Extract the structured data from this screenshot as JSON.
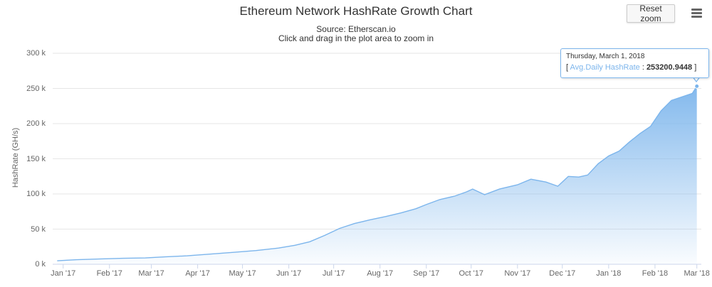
{
  "chart_data": {
    "type": "area",
    "title": "Ethereum Network HashRate Growth Chart",
    "subtitle_source": "Source: Etherscan.io",
    "subtitle_hint": "Click and drag in the plot area to zoom in",
    "ylabel": "HashRate (GH/s)",
    "xlabel": "",
    "ylim": [
      0,
      300000
    ],
    "y_ticks": [
      {
        "value": 0,
        "label": "0 k"
      },
      {
        "value": 50000,
        "label": "50 k"
      },
      {
        "value": 100000,
        "label": "100 k"
      },
      {
        "value": 150000,
        "label": "150 k"
      },
      {
        "value": 200000,
        "label": "200 k"
      },
      {
        "value": 250000,
        "label": "250 k"
      },
      {
        "value": 300000,
        "label": "300 k"
      }
    ],
    "x_ticks": [
      {
        "date": "2017-01-01",
        "label": "Jan '17"
      },
      {
        "date": "2017-02-01",
        "label": "Feb '17"
      },
      {
        "date": "2017-03-01",
        "label": "Mar '17"
      },
      {
        "date": "2017-04-01",
        "label": "Apr '17"
      },
      {
        "date": "2017-05-01",
        "label": "May '17"
      },
      {
        "date": "2017-06-01",
        "label": "Jun '17"
      },
      {
        "date": "2017-07-01",
        "label": "Jul '17"
      },
      {
        "date": "2017-08-01",
        "label": "Aug '17"
      },
      {
        "date": "2017-09-01",
        "label": "Sep '17"
      },
      {
        "date": "2017-10-01",
        "label": "Oct '17"
      },
      {
        "date": "2017-11-01",
        "label": "Nov '17"
      },
      {
        "date": "2017-12-01",
        "label": "Dec '17"
      },
      {
        "date": "2018-01-01",
        "label": "Jan '18"
      },
      {
        "date": "2018-02-01",
        "label": "Feb '18"
      },
      {
        "date": "2018-03-01",
        "label": "Mar '18"
      }
    ],
    "series": [
      {
        "x": [
          "2016-12-28",
          "2017-01-10",
          "2017-01-25",
          "2017-02-10",
          "2017-02-25",
          "2017-03-10",
          "2017-03-25",
          "2017-04-10",
          "2017-04-25",
          "2017-05-10",
          "2017-05-25",
          "2017-06-05",
          "2017-06-15",
          "2017-06-25",
          "2017-07-05",
          "2017-07-15",
          "2017-07-25",
          "2017-08-05",
          "2017-08-15",
          "2017-08-25",
          "2017-09-01",
          "2017-09-10",
          "2017-09-20",
          "2017-09-28",
          "2017-10-02",
          "2017-10-10",
          "2017-10-20",
          "2017-11-01",
          "2017-11-10",
          "2017-11-20",
          "2017-11-28",
          "2017-12-05",
          "2017-12-12",
          "2017-12-18",
          "2017-12-25",
          "2018-01-01",
          "2018-01-08",
          "2018-01-15",
          "2018-01-22",
          "2018-01-29",
          "2018-02-05",
          "2018-02-12",
          "2018-02-19",
          "2018-02-26",
          "2018-03-01"
        ],
        "values": [
          5000,
          6500,
          7500,
          8500,
          9000,
          10500,
          12000,
          14500,
          17000,
          19500,
          23000,
          27000,
          32000,
          41000,
          51000,
          58000,
          63000,
          68000,
          73000,
          79000,
          85000,
          92000,
          97000,
          103000,
          107000,
          99000,
          107000,
          113000,
          121000,
          117000,
          111000,
          125000,
          124000,
          127000,
          143000,
          154000,
          161000,
          174000,
          186000,
          196000,
          218000,
          233000,
          238000,
          243000,
          253200.9448
        ]
      }
    ],
    "colors": {
      "line": "#7cb5ec",
      "area_top": "#7cb5ec",
      "area_bottom": "#ffffff",
      "grid": "#e6e6e6",
      "axis": "#ccd6eb"
    },
    "tooltip": {
      "date": "Thursday, March 1, 2018",
      "bracket_open": "[",
      "series_label": "Avg.Daily HashRate",
      "separator": ":",
      "value": "253200.9448",
      "bracket_close": "]",
      "point_date": "2018-03-01",
      "point_value": 253200.9448
    },
    "grid": true,
    "legend": "none"
  },
  "toolbar": {
    "reset_zoom_label": "Reset zoom",
    "menu_icon": "hamburger-menu-icon"
  }
}
